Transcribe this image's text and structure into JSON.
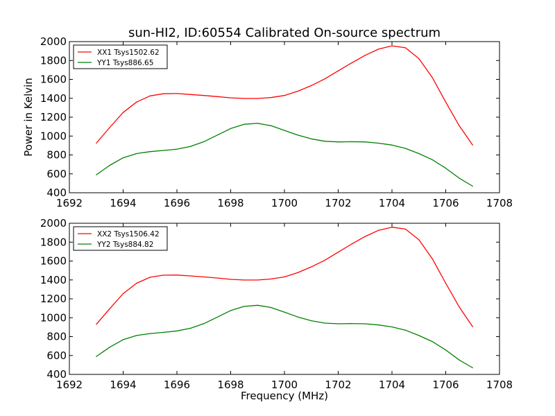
{
  "title": "sun-HI2, ID:60554 Calibrated On-source spectrum",
  "chart_data": [
    {
      "type": "line",
      "title": "sun-HI2, ID:60554 Calibrated On-source spectrum",
      "xlabel": "",
      "ylabel": "Power in Kelvin",
      "xlim": [
        1692,
        1708
      ],
      "ylim": [
        400,
        2000
      ],
      "xticks": [
        "1692",
        "1694",
        "1696",
        "1698",
        "1700",
        "1702",
        "1704",
        "1706",
        "1708"
      ],
      "yticks": [
        "400",
        "600",
        "800",
        "1000",
        "1200",
        "1400",
        "1600",
        "1800",
        "2000"
      ],
      "grid": false,
      "legend_position": "top-left",
      "x": [
        1693.0,
        1693.5,
        1694.0,
        1694.5,
        1695.0,
        1695.5,
        1696.0,
        1696.5,
        1697.0,
        1697.5,
        1698.0,
        1698.5,
        1699.0,
        1699.5,
        1700.0,
        1700.5,
        1701.0,
        1701.5,
        1702.0,
        1702.5,
        1703.0,
        1703.5,
        1704.0,
        1704.5,
        1705.0,
        1705.5,
        1706.0,
        1706.5,
        1707.0
      ],
      "series": [
        {
          "name": "XX1 Tsys1502.62",
          "color": "#ff0000",
          "values": [
            925,
            1090,
            1250,
            1360,
            1425,
            1448,
            1450,
            1440,
            1430,
            1418,
            1405,
            1398,
            1398,
            1408,
            1430,
            1475,
            1535,
            1605,
            1690,
            1775,
            1855,
            1920,
            1955,
            1935,
            1820,
            1620,
            1360,
            1110,
            905
          ]
        },
        {
          "name": "YY1 Tsys886.65",
          "color": "#008000",
          "values": [
            590,
            690,
            770,
            815,
            835,
            848,
            862,
            890,
            940,
            1010,
            1080,
            1125,
            1135,
            1110,
            1060,
            1010,
            970,
            945,
            938,
            940,
            938,
            925,
            905,
            870,
            815,
            750,
            660,
            555,
            470
          ]
        }
      ]
    },
    {
      "type": "line",
      "title": "",
      "xlabel": "Frequency (MHz)",
      "ylabel": "",
      "xlim": [
        1692,
        1708
      ],
      "ylim": [
        400,
        2000
      ],
      "xticks": [
        "1692",
        "1694",
        "1696",
        "1698",
        "1700",
        "1702",
        "1704",
        "1706",
        "1708"
      ],
      "yticks": [
        "400",
        "600",
        "800",
        "1000",
        "1200",
        "1400",
        "1600",
        "1800",
        "2000"
      ],
      "grid": false,
      "legend_position": "top-left",
      "x": [
        1693.0,
        1693.5,
        1694.0,
        1694.5,
        1695.0,
        1695.5,
        1696.0,
        1696.5,
        1697.0,
        1697.5,
        1698.0,
        1698.5,
        1699.0,
        1699.5,
        1700.0,
        1700.5,
        1701.0,
        1701.5,
        1702.0,
        1702.5,
        1703.0,
        1703.5,
        1704.0,
        1704.5,
        1705.0,
        1705.5,
        1706.0,
        1706.5,
        1707.0
      ],
      "series": [
        {
          "name": "XX2 Tsys1506.42",
          "color": "#ff0000",
          "values": [
            930,
            1095,
            1255,
            1365,
            1428,
            1450,
            1452,
            1442,
            1432,
            1420,
            1406,
            1399,
            1399,
            1410,
            1432,
            1478,
            1538,
            1608,
            1694,
            1780,
            1860,
            1925,
            1958,
            1938,
            1825,
            1625,
            1365,
            1115,
            905
          ]
        },
        {
          "name": "YY2 Tsys884.82",
          "color": "#008000",
          "values": [
            590,
            688,
            768,
            812,
            832,
            845,
            860,
            888,
            937,
            1006,
            1076,
            1120,
            1132,
            1108,
            1058,
            1008,
            968,
            943,
            936,
            938,
            936,
            923,
            903,
            868,
            812,
            748,
            658,
            553,
            470
          ]
        }
      ]
    }
  ]
}
